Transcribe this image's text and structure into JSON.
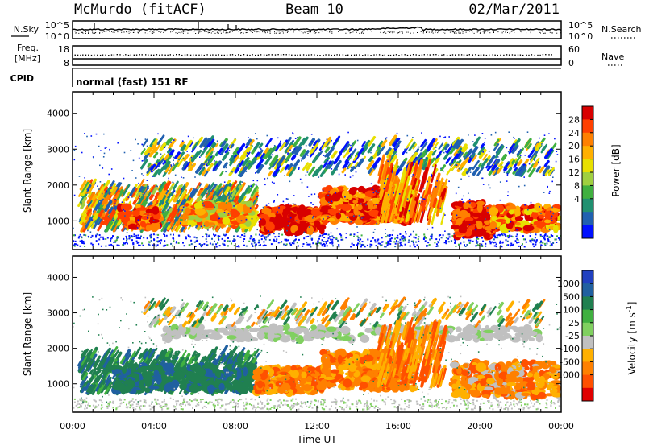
{
  "header": {
    "station": "McMurdo (fitACF)",
    "beam": "Beam 10",
    "date": "02/Mar/2011"
  },
  "strips": {
    "nsky_label": "N.Sky",
    "nsearch_label": "N.Search",
    "nsky_ticks": [
      "10^5",
      "10^0"
    ],
    "nsearch_ticks": [
      "10^5",
      "10^0"
    ],
    "freq_label_1": "Freq.",
    "freq_label_2": "[MHz]",
    "freq_ticks": [
      "18",
      "8"
    ],
    "nave_label": "Nave",
    "nave_ticks": [
      "60",
      "0"
    ],
    "cpid_label": "CPID",
    "cpid_value": "normal (fast) 151 RF"
  },
  "chart_data": [
    {
      "type": "heatmap",
      "panel": "power",
      "xlabel": "Time UT",
      "ylabel": "Slant Range [km]",
      "xlim": [
        0,
        24
      ],
      "ylim": [
        200,
        4600
      ],
      "x_ticks": [
        "00:00",
        "04:00",
        "08:00",
        "12:00",
        "16:00",
        "20:00",
        "00:00"
      ],
      "y_ticks": [
        "1000",
        "2000",
        "3000",
        "4000"
      ],
      "colorbar": {
        "label": "Power [dB]",
        "ticks": [
          "28",
          "24",
          "20",
          "16",
          "12",
          "8",
          "4"
        ],
        "colors": [
          "#d80000",
          "#ff4000",
          "#ff8000",
          "#ffb000",
          "#e8e000",
          "#a0d040",
          "#40b040",
          "#209070",
          "#2060b0",
          "#0010ff"
        ]
      },
      "echo_regions": [
        {
          "t0": 0.3,
          "t1": 9.0,
          "r0": 700,
          "r1": 1900,
          "level": "green-orange"
        },
        {
          "t0": 9.0,
          "t1": 18.0,
          "r0": 600,
          "r1": 2300,
          "level": "red"
        },
        {
          "t0": 18.7,
          "t1": 24.0,
          "r0": 500,
          "r1": 1700,
          "level": "red"
        },
        {
          "t0": 3.5,
          "t1": 23.0,
          "r0": 2200,
          "r1": 3200,
          "level": "green-blue"
        }
      ]
    },
    {
      "type": "heatmap",
      "panel": "velocity",
      "xlabel": "Time UT",
      "ylabel": "Slant Range [km]",
      "xlim": [
        0,
        24
      ],
      "ylim": [
        200,
        4600
      ],
      "x_ticks": [
        "00:00",
        "04:00",
        "08:00",
        "12:00",
        "16:00",
        "20:00",
        "00:00"
      ],
      "y_ticks": [
        "1000",
        "2000",
        "3000",
        "4000"
      ],
      "colorbar": {
        "label": "Velocity [m s",
        "label_sup": "-1",
        "label_end": "]",
        "ticks": [
          "1000",
          "500",
          "100",
          "25",
          "-25",
          "-100",
          "-500",
          "-1000"
        ],
        "colors": [
          "#2040c0",
          "#2060a0",
          "#208050",
          "#40b040",
          "#80d060",
          "#c0c0c0",
          "#ffb000",
          "#ff8000",
          "#ff5000",
          "#e00000"
        ]
      },
      "echo_regions": [
        {
          "t0": 0.3,
          "t1": 9.0,
          "r0": 700,
          "r1": 1800,
          "level": "green (positive)"
        },
        {
          "t0": 9.0,
          "t1": 18.0,
          "r0": 700,
          "r1": 2300,
          "level": "orange (negative)"
        },
        {
          "t0": 18.7,
          "t1": 24.0,
          "r0": 600,
          "r1": 1700,
          "level": "orange (negative)"
        },
        {
          "t0": 4.5,
          "t1": 23.0,
          "r0": 2200,
          "r1": 2600,
          "level": "grey (ground scatter)"
        }
      ]
    }
  ]
}
